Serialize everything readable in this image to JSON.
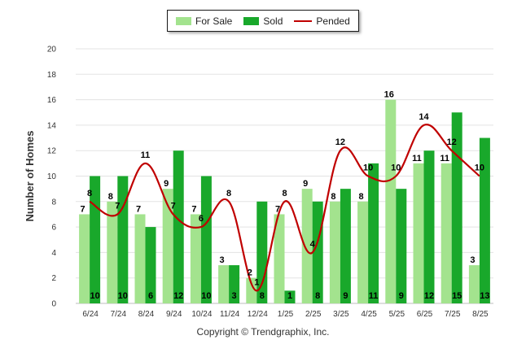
{
  "chart_data": {
    "type": "bar",
    "title": "",
    "xlabel": "",
    "ylabel": "Number of Homes",
    "ylim": [
      0,
      20
    ],
    "yticks": [
      "0",
      "2",
      "4",
      "6",
      "8",
      "10",
      "12",
      "14",
      "16",
      "18",
      "20"
    ],
    "categories": [
      "6/24",
      "7/24",
      "8/24",
      "9/24",
      "10/24",
      "11/24",
      "12/24",
      "1/25",
      "2/25",
      "3/25",
      "4/25",
      "5/25",
      "6/25",
      "7/25",
      "8/25"
    ],
    "series": [
      {
        "name": "For Sale",
        "kind": "bar",
        "color": "#a3e38e",
        "values": [
          7,
          8,
          7,
          9,
          7,
          3,
          2,
          7,
          9,
          8,
          8,
          16,
          11,
          11,
          3
        ]
      },
      {
        "name": "Sold",
        "kind": "bar",
        "color": "#19a82b",
        "values": [
          10,
          10,
          6,
          12,
          10,
          3,
          8,
          1,
          8,
          9,
          11,
          9,
          12,
          15,
          13
        ]
      },
      {
        "name": "Pended",
        "kind": "line",
        "color": "#c00000",
        "values": [
          8,
          7,
          11,
          7,
          6,
          8,
          1,
          8,
          4,
          12,
          10,
          10,
          14,
          12,
          10
        ]
      }
    ],
    "grid": true,
    "legend_position": "top-center"
  },
  "legend": {
    "for_sale": "For Sale",
    "sold": "Sold",
    "pended": "Pended"
  },
  "footer": {
    "copyright": "Copyright © Trendgraphix, Inc."
  }
}
